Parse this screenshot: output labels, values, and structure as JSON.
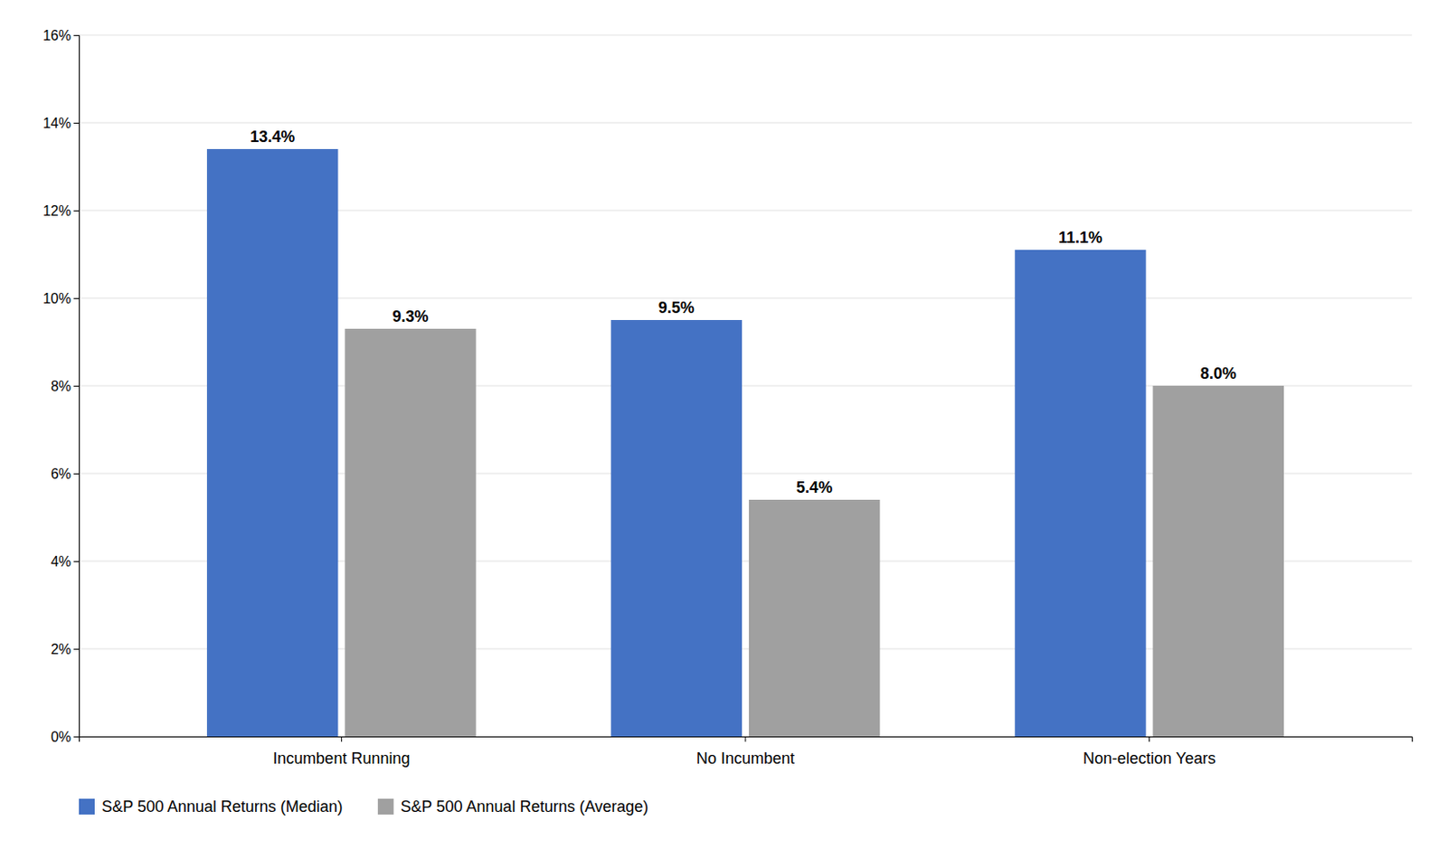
{
  "chart_data": {
    "type": "bar",
    "categories": [
      "Incumbent Running",
      "No Incumbent",
      "Non-election Years"
    ],
    "series": [
      {
        "name": "S&P 500 Annual Returns (Median)",
        "color": "#4472C4",
        "values": [
          13.4,
          9.5,
          11.1
        ],
        "value_labels": [
          "13.4%",
          "9.5%",
          "11.1%"
        ]
      },
      {
        "name": "S&P 500 Annual Returns (Average)",
        "color": "#A0A0A0",
        "values": [
          9.3,
          5.4,
          8.0
        ],
        "value_labels": [
          "9.3%",
          "5.4%",
          "8.0%"
        ]
      }
    ],
    "ylim": [
      0,
      16
    ],
    "yticks": [
      {
        "value": 0,
        "label": "0%"
      },
      {
        "value": 2,
        "label": "2%"
      },
      {
        "value": 4,
        "label": "4%"
      },
      {
        "value": 6,
        "label": "6%"
      },
      {
        "value": 8,
        "label": "8%"
      },
      {
        "value": 10,
        "label": "10%"
      },
      {
        "value": 12,
        "label": "12%"
      },
      {
        "value": 14,
        "label": "14%"
      },
      {
        "value": 16,
        "label": "16%"
      }
    ],
    "grid": true,
    "data_labels": true,
    "legend": "bottom"
  }
}
